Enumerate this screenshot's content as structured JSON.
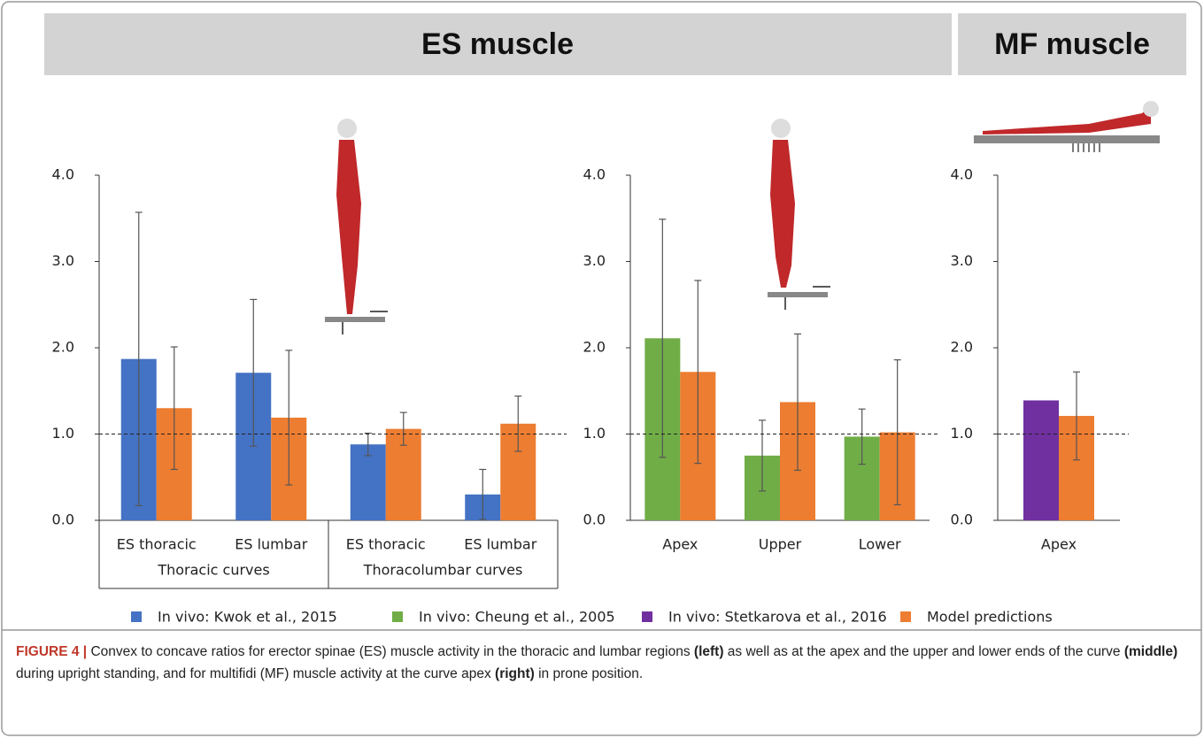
{
  "headers": {
    "es": "ES muscle",
    "mf": "MF muscle"
  },
  "chart_data": [
    {
      "type": "bar",
      "categories": [
        "ES thoracic",
        "ES lumbar",
        "ES thoracic",
        "ES lumbar"
      ],
      "group_labels": [
        "Thoracic curves",
        "Thoracolumbar curves"
      ],
      "series": [
        {
          "name": "In vivo: Kwok et al., 2015",
          "color": "#4472c4",
          "values": [
            1.87,
            1.71,
            0.88,
            0.3
          ],
          "errors": [
            1.7,
            0.85,
            0.13,
            0.29
          ]
        },
        {
          "name": "Model predictions",
          "color": "#ed7d31",
          "values": [
            1.3,
            1.19,
            1.06,
            1.12
          ],
          "errors": [
            0.71,
            0.78,
            0.19,
            0.32
          ]
        }
      ],
      "ylim": [
        0,
        4
      ],
      "yticks": [
        {
          "value": 0,
          "label": "0.0"
        },
        {
          "value": 1,
          "label": "1.0"
        },
        {
          "value": 2,
          "label": "2.0"
        },
        {
          "value": 3,
          "label": "3.0"
        },
        {
          "value": 4,
          "label": "4.0"
        }
      ],
      "reference_line": 1
    },
    {
      "type": "bar",
      "categories": [
        "Apex",
        "Upper",
        "Lower"
      ],
      "series": [
        {
          "name": "In vivo: Cheung et al., 2005",
          "color": "#70ad47",
          "values": [
            2.11,
            0.75,
            0.97
          ],
          "errors": [
            1.38,
            0.41,
            0.32
          ]
        },
        {
          "color": "#ed7d31",
          "values": [
            1.72,
            1.37,
            1.02
          ],
          "errors": [
            1.06,
            0.79,
            0.84
          ]
        }
      ],
      "ylim": [
        0,
        4
      ],
      "yticks": [
        {
          "value": 0,
          "label": "0.0"
        },
        {
          "value": 1,
          "label": "1.0"
        },
        {
          "value": 2,
          "label": "2.0"
        },
        {
          "value": 3,
          "label": "3.0"
        },
        {
          "value": 4,
          "label": "4.0"
        }
      ],
      "reference_line": 1
    },
    {
      "type": "bar",
      "categories": [
        "Apex"
      ],
      "series": [
        {
          "name": "In vivo: Stetkarova et al., 2016",
          "color": "#7030a0",
          "values": [
            1.39
          ]
        },
        {
          "color": "#ed7d31",
          "values": [
            1.21
          ],
          "errors": [
            0.51
          ]
        }
      ],
      "ylim": [
        0,
        4
      ],
      "yticks": [
        {
          "value": 0,
          "label": "0.0"
        },
        {
          "value": 1,
          "label": "1.0"
        },
        {
          "value": 2,
          "label": "2.0"
        },
        {
          "value": 3,
          "label": "3.0"
        },
        {
          "value": 4,
          "label": "4.0"
        }
      ],
      "reference_line": 1
    }
  ],
  "caption": {
    "label": "FIGURE 4 |",
    "parts": [
      "Convex to concave ratios for erector spinae (ES) muscle activity in the thoracic and lumbar regions ",
      "(left)",
      " as well as at the apex and the upper and lower ends of the curve ",
      "(middle)",
      " during upright standing, and for multifidi (MF) muscle activity at the curve apex ",
      "(right)",
      " in prone position."
    ]
  }
}
